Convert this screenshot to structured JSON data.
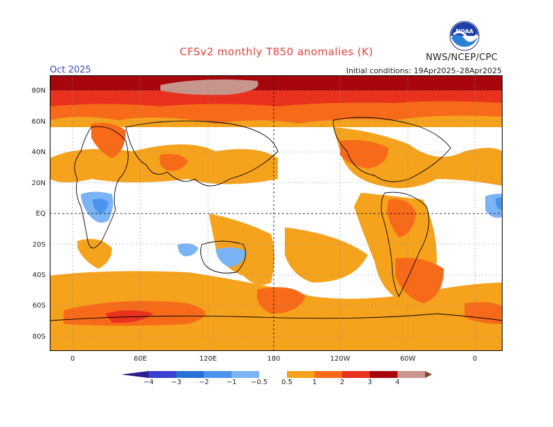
{
  "header": {
    "title": "CFSv2 monthly T850 anomalies (K)",
    "month": "Oct 2025",
    "initial_conditions": "Initial conditions: 19Apr2025–28Apr2025",
    "agency": "NWS/NCEP/CPC",
    "logo_text": "NOAA"
  },
  "map": {
    "lat_labels": [
      "80N",
      "60N",
      "40N",
      "20N",
      "EQ",
      "20S",
      "40S",
      "60S",
      "80S"
    ],
    "lon_labels": [
      "0",
      "60E",
      "120E",
      "180",
      "120W",
      "60W",
      "0"
    ],
    "colors": {
      "c_m4": "#2a1d8c",
      "c_m3": "#3b3fcf",
      "c_m2": "#2a6fd6",
      "c_m1": "#4a94ee",
      "c_m05": "#7ab4f4",
      "c_p05": "#f5a21d",
      "c_p1": "#f76a19",
      "c_p2": "#e8321e",
      "c_p3": "#a8060d",
      "c_p4": "#c7968c",
      "c_p5": "#7a4a3a"
    }
  },
  "colorbar": {
    "labels": [
      "−4",
      "−3",
      "−2",
      "−1",
      "−0.5",
      "0.5",
      "1",
      "2",
      "3",
      "4"
    ]
  }
}
